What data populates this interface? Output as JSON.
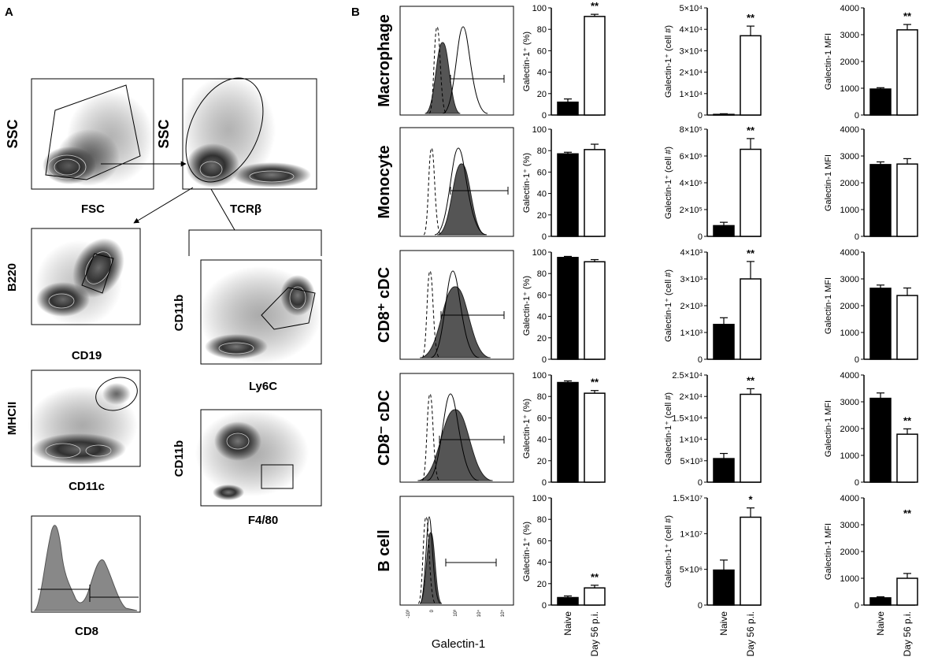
{
  "figure": {
    "panel_a_letter": "A",
    "panel_b_letter": "B",
    "gating": {
      "p1": {
        "x": "FSC",
        "y": "SSC"
      },
      "p2": {
        "x": "TCRβ",
        "y": "SSC"
      },
      "p3": {
        "x": "CD19",
        "y": "B220"
      },
      "p4": {
        "x": "CD11c",
        "y": "MHCII"
      },
      "p5": {
        "x": "CD8"
      },
      "p6": {
        "x": "Ly6C",
        "y": "CD11b"
      },
      "p7": {
        "x": "F4/80",
        "y": "CD11b"
      }
    },
    "histogram_xlabel": "Galectin-1",
    "hist_ticks": [
      "-10³",
      "0",
      "10³",
      "10⁴",
      "10⁵"
    ],
    "groups": [
      "Naive",
      "Day 56 p.i."
    ],
    "rows": [
      "Macrophage",
      "Monocyte",
      "CD8⁺ cDC",
      "CD8⁻ cDC",
      "B cell"
    ],
    "col_ylabels": [
      "Galectin-1⁺ (%)",
      "Galectin-1⁺ (cell #)",
      "Galectin-1 MFI"
    ]
  },
  "chart_data": [
    {
      "type": "bar",
      "title": "Macrophage Galectin-1+ (%)",
      "ylabel": "Galectin-1⁺ (%)",
      "categories": [
        "Naive",
        "Day 56 p.i."
      ],
      "values": [
        12,
        92
      ],
      "errors": [
        3,
        2
      ],
      "ylim": [
        0,
        100
      ],
      "ticks": [
        "0",
        "20",
        "40",
        "60",
        "80",
        "100"
      ],
      "annotation": "**"
    },
    {
      "type": "bar",
      "title": "Macrophage Galectin-1+ (cell #)",
      "ylabel": "Galectin-1⁺ (cell #)",
      "categories": [
        "Naive",
        "Day 56 p.i."
      ],
      "values": [
        300,
        37000
      ],
      "errors": [
        300,
        4500
      ],
      "ylim": [
        0,
        50000
      ],
      "ticks": [
        "0",
        "1×10⁴",
        "2×10⁴",
        "3×10⁴",
        "4×10⁴",
        "5×10⁴"
      ],
      "annotation": "**"
    },
    {
      "type": "bar",
      "title": "Macrophage Galectin-1 MFI",
      "ylabel": "Galectin-1 MFI",
      "categories": [
        "Naive",
        "Day 56 p.i."
      ],
      "values": [
        970,
        3180
      ],
      "errors": [
        50,
        200
      ],
      "ylim": [
        0,
        4000
      ],
      "ticks": [
        "0",
        "1000",
        "2000",
        "3000",
        "4000"
      ],
      "annotation": "**"
    },
    {
      "type": "bar",
      "title": "Monocyte Galectin-1+ (%)",
      "ylabel": "Galectin-1⁺ (%)",
      "categories": [
        "Naive",
        "Day 56 p.i."
      ],
      "values": [
        77,
        81
      ],
      "errors": [
        1.5,
        5
      ],
      "ylim": [
        0,
        100
      ],
      "ticks": [
        "0",
        "20",
        "40",
        "60",
        "80",
        "100"
      ],
      "annotation": ""
    },
    {
      "type": "bar",
      "title": "Monocyte Galectin-1+ (cell #)",
      "ylabel": "Galectin-1⁺ (cell #)",
      "categories": [
        "Naive",
        "Day 56 p.i."
      ],
      "values": [
        80000,
        650000
      ],
      "errors": [
        25000,
        80000
      ],
      "ylim": [
        0,
        800000
      ],
      "ticks": [
        "0",
        "2×10⁵",
        "4×10⁵",
        "6×10⁵",
        "8×10⁵"
      ],
      "annotation": "**"
    },
    {
      "type": "bar",
      "title": "Monocyte Galectin-1 MFI",
      "ylabel": "Galectin-1 MFI",
      "categories": [
        "Naive",
        "Day 56 p.i."
      ],
      "values": [
        2680,
        2700
      ],
      "errors": [
        100,
        200
      ],
      "ylim": [
        0,
        4000
      ],
      "ticks": [
        "0",
        "1000",
        "2000",
        "3000",
        "4000"
      ],
      "annotation": ""
    },
    {
      "type": "bar",
      "title": "CD8+ cDC Galectin-1+ (%)",
      "ylabel": "Galectin-1⁺ (%)",
      "categories": [
        "Naive",
        "Day 56 p.i."
      ],
      "values": [
        95,
        91
      ],
      "errors": [
        1,
        2
      ],
      "ylim": [
        0,
        100
      ],
      "ticks": [
        "0",
        "20",
        "40",
        "60",
        "80",
        "100"
      ],
      "annotation": ""
    },
    {
      "type": "bar",
      "title": "CD8+ cDC Galectin-1+ (cell #)",
      "ylabel": "Galectin-1⁺ (cell #)",
      "categories": [
        "Naive",
        "Day 56 p.i."
      ],
      "values": [
        1300,
        3000
      ],
      "errors": [
        250,
        650
      ],
      "ylim": [
        0,
        4000
      ],
      "ticks": [
        "0",
        "1×10³",
        "2×10³",
        "3×10³",
        "4×10³"
      ],
      "annotation": "**"
    },
    {
      "type": "bar",
      "title": "CD8+ cDC Galectin-1 MFI",
      "ylabel": "Galectin-1 MFI",
      "categories": [
        "Naive",
        "Day 56 p.i."
      ],
      "values": [
        2650,
        2380
      ],
      "errors": [
        120,
        280
      ],
      "ylim": [
        0,
        4000
      ],
      "ticks": [
        "0",
        "1000",
        "2000",
        "3000",
        "4000"
      ],
      "annotation": ""
    },
    {
      "type": "bar",
      "title": "CD8- cDC Galectin-1+ (%)",
      "ylabel": "Galectin-1⁺ (%)",
      "categories": [
        "Naive",
        "Day 56 p.i."
      ],
      "values": [
        93,
        83
      ],
      "errors": [
        1.5,
        2.5
      ],
      "ylim": [
        0,
        100
      ],
      "ticks": [
        "0",
        "20",
        "40",
        "60",
        "80",
        "100"
      ],
      "annotation": "**"
    },
    {
      "type": "bar",
      "title": "CD8- cDC Galectin-1+ (cell #)",
      "ylabel": "Galectin-1⁺ (cell #)",
      "categories": [
        "Naive",
        "Day 56 p.i."
      ],
      "values": [
        5500,
        20500
      ],
      "errors": [
        1200,
        1300
      ],
      "ylim": [
        0,
        25000
      ],
      "ticks": [
        "0",
        "5×10³",
        "1×10⁴",
        "1.5×10⁴",
        "2×10⁴",
        "2.5×10⁴"
      ],
      "annotation": "**"
    },
    {
      "type": "bar",
      "title": "CD8- cDC Galectin-1 MFI",
      "ylabel": "Galectin-1 MFI",
      "categories": [
        "Naive",
        "Day 56 p.i."
      ],
      "values": [
        3130,
        1790
      ],
      "errors": [
        200,
        200
      ],
      "ylim": [
        0,
        4000
      ],
      "ticks": [
        "0",
        "1000",
        "2000",
        "3000",
        "4000"
      ],
      "annotation": "**"
    },
    {
      "type": "bar",
      "title": "B cell Galectin-1+ (%)",
      "ylabel": "Galectin-1⁺ (%)",
      "categories": [
        "Naive",
        "Day 56 p.i."
      ],
      "values": [
        7,
        16
      ],
      "errors": [
        1.5,
        2.5
      ],
      "ylim": [
        0,
        100
      ],
      "ticks": [
        "0",
        "20",
        "40",
        "60",
        "80",
        "100"
      ],
      "annotation": "**"
    },
    {
      "type": "bar",
      "title": "B cell Galectin-1+ (cell #)",
      "ylabel": "Galectin-1⁺ (cell #)",
      "categories": [
        "Naive",
        "Day 56 p.i."
      ],
      "values": [
        4900000,
        12300000
      ],
      "errors": [
        1400000,
        1300000
      ],
      "ylim": [
        0,
        15000000
      ],
      "ticks": [
        "0",
        "5×10⁶",
        "1×10⁷",
        "1.5×10⁷"
      ],
      "annotation": "*"
    },
    {
      "type": "bar",
      "title": "B cell Galectin-1 MFI",
      "ylabel": "Galectin-1 MFI",
      "categories": [
        "Naive",
        "Day 56 p.i."
      ],
      "values": [
        270,
        1000
      ],
      "errors": [
        40,
        180
      ],
      "ylim": [
        0,
        4000
      ],
      "ticks": [
        "0",
        "1000",
        "2000",
        "3000",
        "4000"
      ],
      "annotation": "**"
    }
  ]
}
